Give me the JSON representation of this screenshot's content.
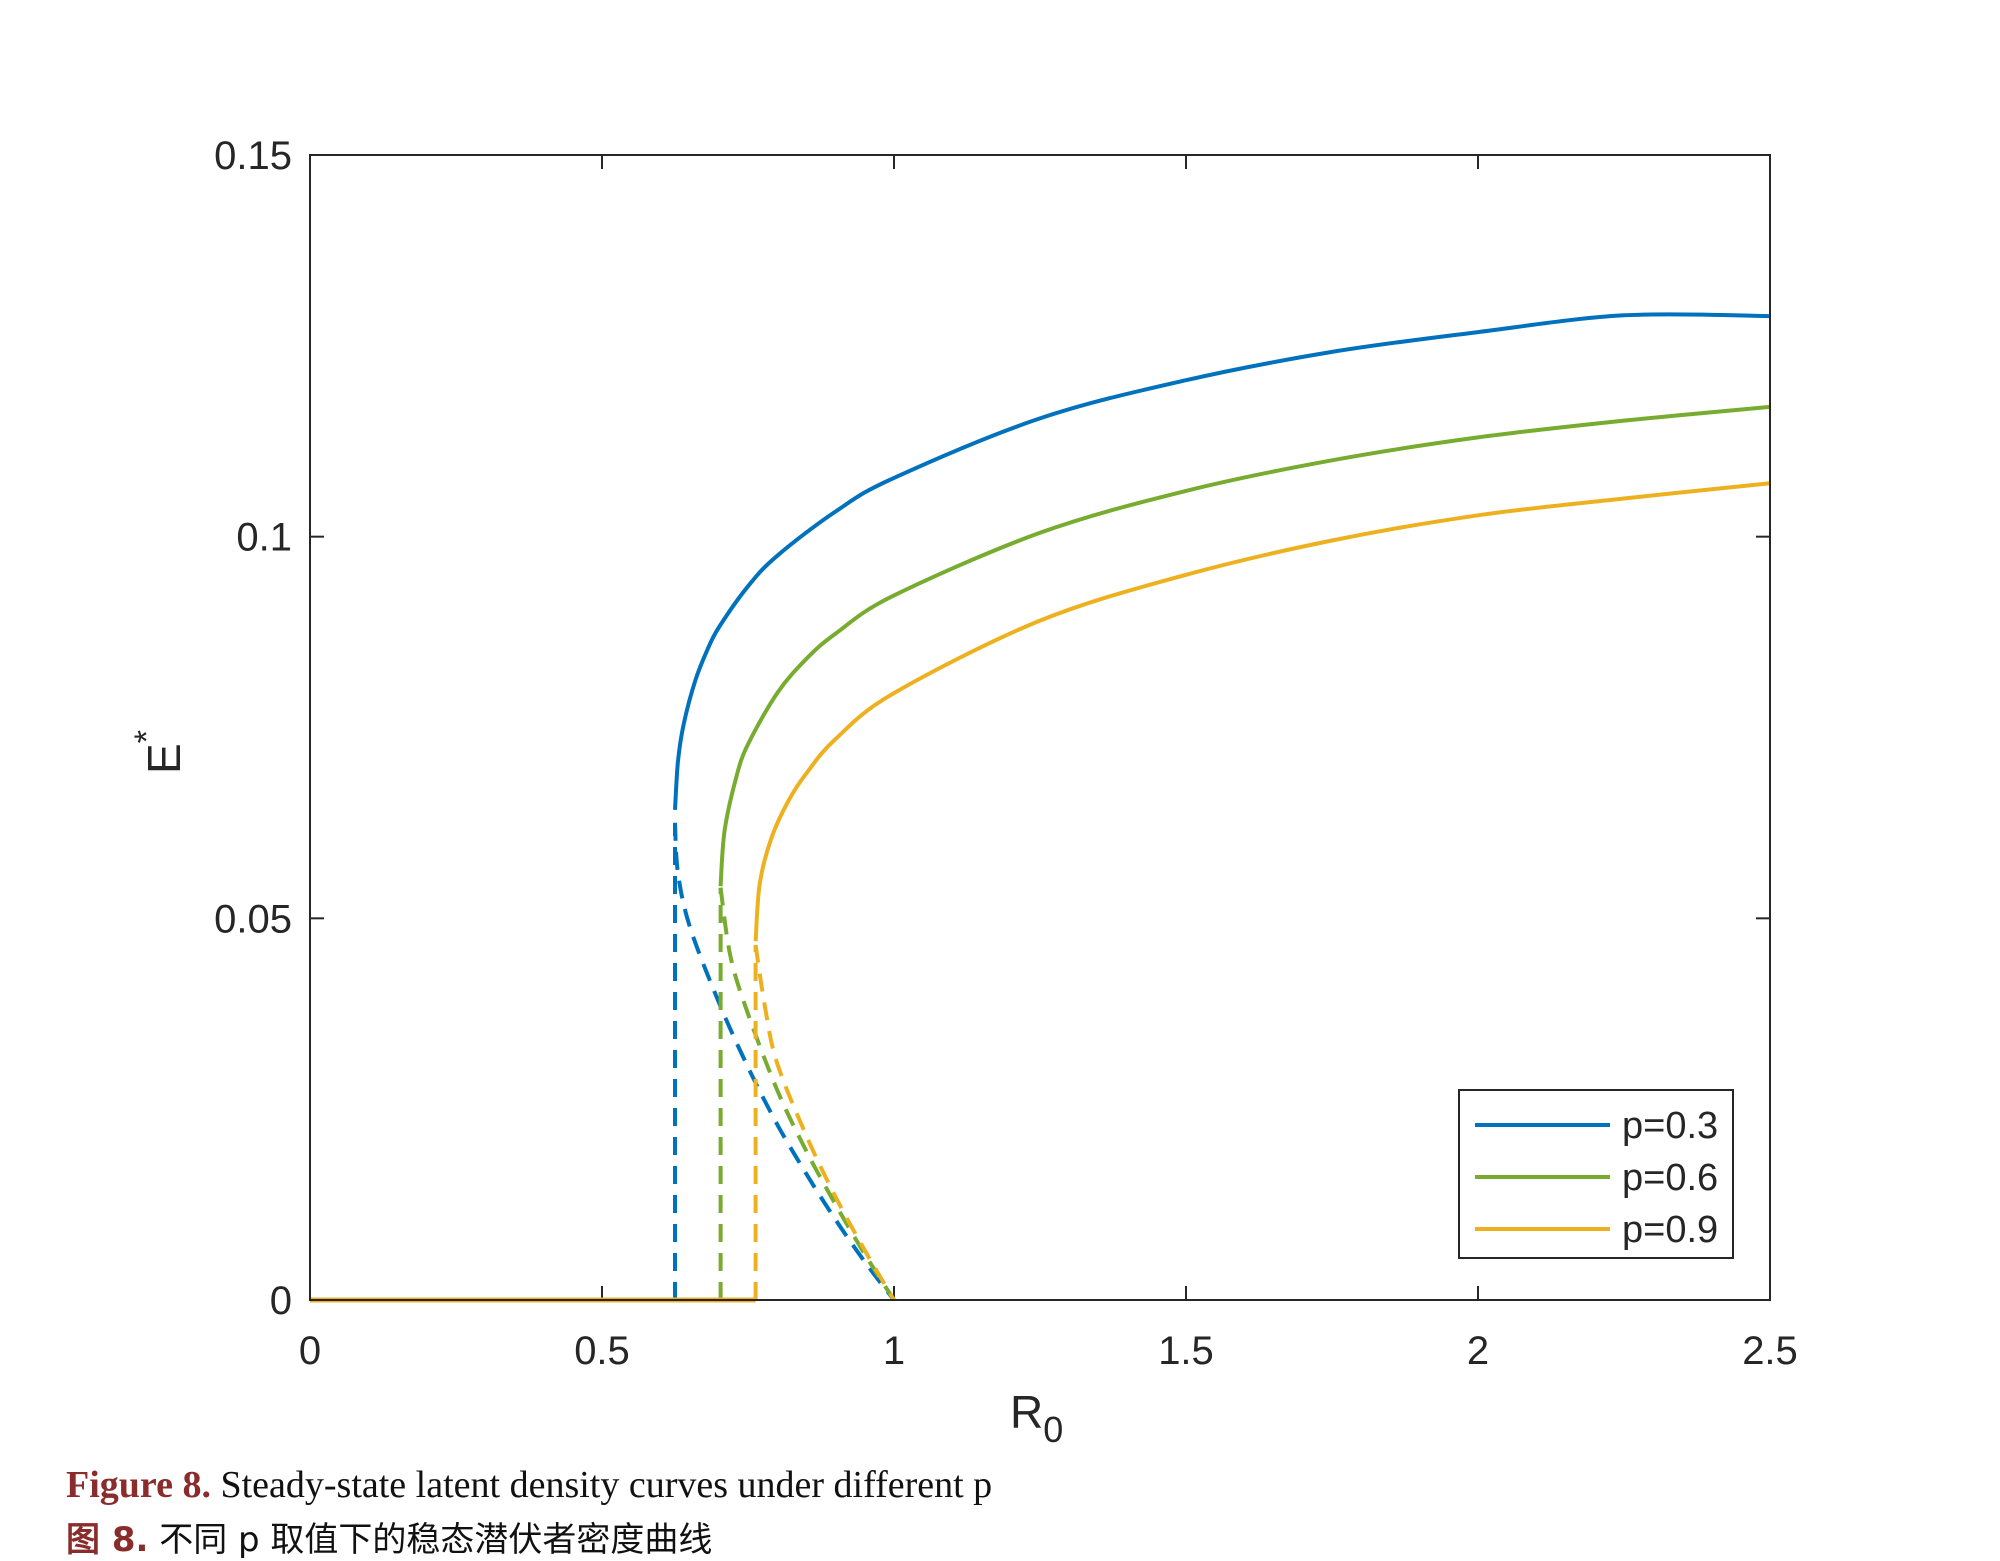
{
  "chart_data": {
    "type": "line",
    "title": "",
    "xlabel": "R",
    "xlabel_sub": "0",
    "ylabel": "E",
    "ylabel_sup": "*",
    "xlim": [
      0,
      2.5
    ],
    "ylim": [
      0,
      0.15
    ],
    "xticks": [
      0,
      0.5,
      1,
      1.5,
      2,
      2.5
    ],
    "xtick_labels": [
      "0",
      "0.5",
      "1",
      "1.5",
      "2",
      "2.5"
    ],
    "yticks": [
      0,
      0.05,
      0.1,
      0.15
    ],
    "ytick_labels": [
      "0",
      "0.05",
      "0.1",
      "0.15"
    ],
    "grid": false,
    "legend_position": "bottom-right",
    "series": [
      {
        "name": "p=0.3",
        "color": "#0072BD",
        "trivial_end": 0.625,
        "stable": [
          [
            0.625,
            0.0642
          ],
          [
            0.63,
            0.0705
          ],
          [
            0.64,
            0.0755
          ],
          [
            0.66,
            0.0812
          ],
          [
            0.68,
            0.0851
          ],
          [
            0.7,
            0.0881
          ],
          [
            0.75,
            0.0935
          ],
          [
            0.8,
            0.0975
          ],
          [
            0.9,
            0.1033
          ],
          [
            1.0,
            0.1077
          ],
          [
            1.25,
            0.1155
          ],
          [
            1.5,
            0.1205
          ],
          [
            1.75,
            0.1242
          ],
          [
            2.0,
            0.1268
          ],
          [
            2.25,
            0.129
          ],
          [
            2.5,
            0.1289
          ]
        ],
        "unstable": [
          [
            0.625,
            0.0
          ],
          [
            0.625,
            0.0625
          ],
          [
            0.63,
            0.056
          ],
          [
            0.65,
            0.049
          ],
          [
            0.7,
            0.039
          ],
          [
            0.75,
            0.0305
          ],
          [
            0.8,
            0.023
          ],
          [
            0.85,
            0.0165
          ],
          [
            0.9,
            0.0105
          ],
          [
            0.95,
            0.005
          ],
          [
            1.0,
            0.0
          ]
        ]
      },
      {
        "name": "p=0.6",
        "color": "#77AC30",
        "trivial_end": 0.703,
        "stable": [
          [
            0.703,
            0.0542
          ],
          [
            0.71,
            0.0615
          ],
          [
            0.73,
            0.0685
          ],
          [
            0.75,
            0.0728
          ],
          [
            0.8,
            0.0795
          ],
          [
            0.85,
            0.084
          ],
          [
            0.9,
            0.0873
          ],
          [
            1.0,
            0.0923
          ],
          [
            1.25,
            0.1005
          ],
          [
            1.5,
            0.106
          ],
          [
            1.75,
            0.11
          ],
          [
            2.0,
            0.113
          ],
          [
            2.25,
            0.1152
          ],
          [
            2.5,
            0.117
          ]
        ],
        "unstable": [
          [
            0.703,
            0.0
          ],
          [
            0.703,
            0.054
          ],
          [
            0.72,
            0.045
          ],
          [
            0.75,
            0.0375
          ],
          [
            0.8,
            0.0275
          ],
          [
            0.85,
            0.0195
          ],
          [
            0.9,
            0.0125
          ],
          [
            0.95,
            0.006
          ],
          [
            1.0,
            0.0
          ]
        ]
      },
      {
        "name": "p=0.9",
        "color": "#EDB120",
        "trivial_end": 0.763,
        "stable": [
          [
            0.763,
            0.047
          ],
          [
            0.77,
            0.0545
          ],
          [
            0.79,
            0.0605
          ],
          [
            0.82,
            0.0655
          ],
          [
            0.85,
            0.069
          ],
          [
            0.9,
            0.0735
          ],
          [
            1.0,
            0.0795
          ],
          [
            1.25,
            0.089
          ],
          [
            1.5,
            0.095
          ],
          [
            1.75,
            0.0995
          ],
          [
            2.0,
            0.1028
          ],
          [
            2.25,
            0.105
          ],
          [
            2.5,
            0.107
          ]
        ],
        "unstable": [
          [
            0.763,
            0.0
          ],
          [
            0.763,
            0.0465
          ],
          [
            0.78,
            0.038
          ],
          [
            0.8,
            0.031
          ],
          [
            0.85,
            0.0215
          ],
          [
            0.9,
            0.0135
          ],
          [
            0.95,
            0.0065
          ],
          [
            1.0,
            0.0
          ]
        ]
      }
    ]
  },
  "caption": {
    "en_label": "Figure 8.",
    "en_text": " Steady-state latent density curves under different p",
    "zh_label": "图 8.",
    "zh_text": " 不同 p 取值下的稳态潜伏者密度曲线"
  }
}
